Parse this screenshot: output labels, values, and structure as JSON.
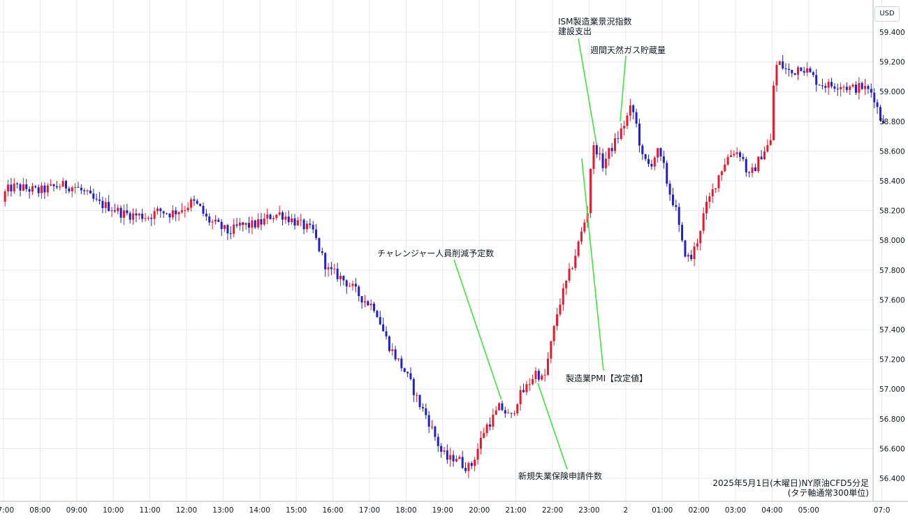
{
  "currency_label": "USD",
  "caption": {
    "line1": "2025年5月1日(木曜日)NY原油CFD5分足",
    "line2": "(タテ軸通常300単位)"
  },
  "colors": {
    "up": "#e8192c",
    "down": "#2020c8",
    "grid": "#e6e8ee",
    "annotation_line": "#3be63b",
    "text": "#131722"
  },
  "chart_data": {
    "type": "candlestick",
    "title": "",
    "xlabel": "",
    "ylabel": "",
    "ylim": [
      56.3,
      59.5
    ],
    "xlim": [
      "06:55",
      "07:05+1"
    ],
    "grid": true,
    "y_ticks": [
      "59.400",
      "59.200",
      "59.000",
      "58.800",
      "58.600",
      "58.400",
      "58.200",
      "58.000",
      "57.800",
      "57.600",
      "57.400",
      "57.200",
      "57.000",
      "56.800",
      "56.600",
      "56.400"
    ],
    "y_tick_values": [
      59.4,
      59.2,
      59.0,
      58.8,
      58.6,
      58.4,
      58.2,
      58.0,
      57.8,
      57.6,
      57.4,
      57.2,
      57.0,
      56.8,
      56.6,
      56.4
    ],
    "x_ticks": [
      "07:00",
      "08:00",
      "09:00",
      "10:00",
      "11:00",
      "12:00",
      "13:00",
      "14:00",
      "15:00",
      "16:00",
      "17:00",
      "18:00",
      "19:00",
      "20:00",
      "21:00",
      "22:00",
      "23:00",
      "2",
      "01:00",
      "02:00",
      "03:00",
      "04:00",
      "05:00",
      "07:0"
    ],
    "x_tick_hours": [
      7,
      8,
      9,
      10,
      11,
      12,
      13,
      14,
      15,
      16,
      17,
      18,
      19,
      20,
      21,
      22,
      23,
      24,
      25,
      26,
      27,
      28,
      29,
      31
    ],
    "close_path": [
      [
        7.0,
        58.26
      ],
      [
        7.1,
        58.33
      ],
      [
        7.3,
        58.36
      ],
      [
        7.6,
        58.35
      ],
      [
        8.0,
        58.33
      ],
      [
        8.3,
        58.35
      ],
      [
        8.6,
        58.37
      ],
      [
        9.0,
        58.36
      ],
      [
        9.3,
        58.31
      ],
      [
        9.6,
        58.25
      ],
      [
        10.0,
        58.22
      ],
      [
        10.3,
        58.18
      ],
      [
        10.6,
        58.17
      ],
      [
        11.0,
        58.16
      ],
      [
        11.3,
        58.2
      ],
      [
        11.6,
        58.18
      ],
      [
        12.0,
        58.22
      ],
      [
        12.2,
        58.26
      ],
      [
        12.4,
        58.22
      ],
      [
        12.6,
        58.14
      ],
      [
        12.9,
        58.1
      ],
      [
        13.2,
        58.05
      ],
      [
        13.5,
        58.1
      ],
      [
        13.8,
        58.1
      ],
      [
        14.1,
        58.12
      ],
      [
        14.3,
        58.16
      ],
      [
        14.6,
        58.18
      ],
      [
        14.9,
        58.14
      ],
      [
        15.2,
        58.1
      ],
      [
        15.5,
        58.06
      ],
      [
        15.7,
        57.92
      ],
      [
        15.9,
        57.8
      ],
      [
        16.2,
        57.76
      ],
      [
        16.5,
        57.7
      ],
      [
        16.8,
        57.62
      ],
      [
        17.0,
        57.58
      ],
      [
        17.2,
        57.55
      ],
      [
        17.4,
        57.4
      ],
      [
        17.6,
        57.28
      ],
      [
        17.8,
        57.2
      ],
      [
        18.0,
        57.12
      ],
      [
        18.2,
        57.02
      ],
      [
        18.4,
        56.9
      ],
      [
        18.6,
        56.82
      ],
      [
        18.8,
        56.7
      ],
      [
        19.0,
        56.58
      ],
      [
        19.2,
        56.52
      ],
      [
        19.4,
        56.55
      ],
      [
        19.6,
        56.49
      ],
      [
        19.8,
        56.47
      ],
      [
        20.0,
        56.6
      ],
      [
        20.2,
        56.74
      ],
      [
        20.4,
        56.8
      ],
      [
        20.6,
        56.88
      ],
      [
        20.7,
        56.86
      ],
      [
        20.9,
        56.8
      ],
      [
        21.1,
        56.94
      ],
      [
        21.3,
        57.0
      ],
      [
        21.5,
        57.08
      ],
      [
        21.6,
        57.12
      ],
      [
        21.8,
        57.05
      ],
      [
        22.0,
        57.3
      ],
      [
        22.2,
        57.55
      ],
      [
        22.4,
        57.7
      ],
      [
        22.6,
        57.85
      ],
      [
        22.8,
        58.02
      ],
      [
        23.0,
        58.2
      ],
      [
        23.1,
        58.55
      ],
      [
        23.2,
        58.65
      ],
      [
        23.4,
        58.5
      ],
      [
        23.6,
        58.6
      ],
      [
        23.8,
        58.68
      ],
      [
        24.0,
        58.78
      ],
      [
        24.2,
        58.9
      ],
      [
        24.3,
        58.82
      ],
      [
        24.5,
        58.55
      ],
      [
        24.7,
        58.5
      ],
      [
        24.9,
        58.6
      ],
      [
        25.1,
        58.48
      ],
      [
        25.2,
        58.35
      ],
      [
        25.4,
        58.22
      ],
      [
        25.6,
        57.95
      ],
      [
        25.8,
        57.86
      ],
      [
        26.0,
        58.0
      ],
      [
        26.2,
        58.2
      ],
      [
        26.4,
        58.32
      ],
      [
        26.6,
        58.45
      ],
      [
        26.8,
        58.55
      ],
      [
        27.0,
        58.6
      ],
      [
        27.2,
        58.58
      ],
      [
        27.4,
        58.42
      ],
      [
        27.6,
        58.5
      ],
      [
        27.8,
        58.6
      ],
      [
        28.0,
        58.66
      ],
      [
        28.1,
        59.12
      ],
      [
        28.2,
        59.2
      ],
      [
        28.4,
        59.15
      ],
      [
        28.6,
        59.12
      ],
      [
        28.8,
        59.18
      ],
      [
        29.0,
        59.14
      ],
      [
        29.3,
        59.06
      ],
      [
        29.6,
        59.04
      ],
      [
        29.9,
        59.05
      ],
      [
        30.2,
        59.02
      ],
      [
        30.5,
        59.03
      ],
      [
        30.8,
        58.99
      ],
      [
        31.0,
        58.82
      ]
    ],
    "annotations": [
      {
        "label": "チャレンジャー人員削減予定数",
        "hour": 20.6,
        "price": 56.93
      },
      {
        "label": "新規失業保険申請件数",
        "hour": 21.6,
        "price": 57.04
      },
      {
        "label": "ISM製造業景況指数",
        "hour": 23.2,
        "price": 58.65
      },
      {
        "label": "建設支出",
        "hour": 23.2,
        "price": 58.65
      },
      {
        "label": "週間天然ガス貯蔵量",
        "hour": 23.85,
        "price": 58.8
      },
      {
        "label": "製造業PMI【改定値】",
        "hour": 22.8,
        "price": 58.55
      }
    ]
  }
}
